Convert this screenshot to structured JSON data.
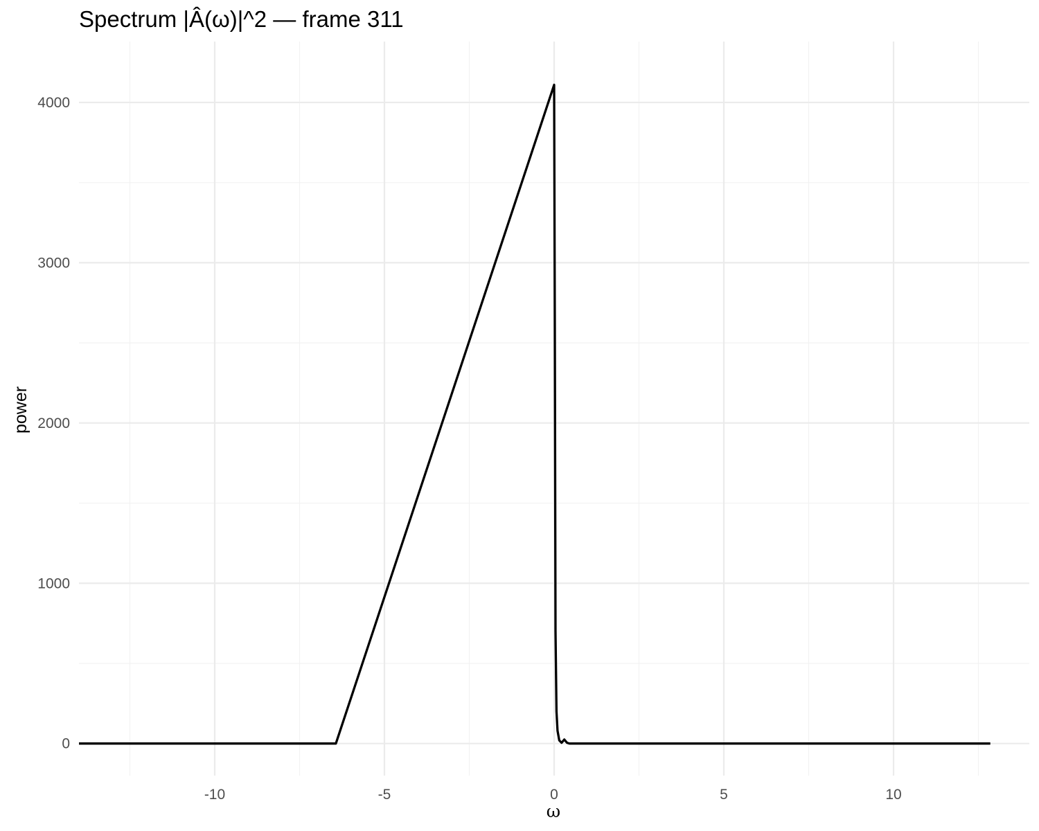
{
  "chart_data": {
    "type": "line",
    "title": "Spectrum |Â(ω)|^2 — frame 311",
    "xlabel": "ω",
    "ylabel": "power",
    "xlim": [
      -14.0,
      14.0
    ],
    "ylim": [
      -200,
      4380
    ],
    "x_ticks": [
      -10,
      -5,
      0,
      5,
      10
    ],
    "x_tick_labels": [
      "-10",
      "-5",
      "0",
      "5",
      "10"
    ],
    "x_minor_ticks": [
      -12.5,
      -7.5,
      -2.5,
      2.5,
      7.5,
      12.5
    ],
    "y_ticks": [
      0,
      1000,
      2000,
      3000,
      4000
    ],
    "y_tick_labels": [
      "0",
      "1000",
      "2000",
      "3000",
      "4000"
    ],
    "y_minor_ticks": [
      500,
      1500,
      2500,
      3500
    ],
    "grid": true,
    "legend": "none",
    "series": [
      {
        "color": "#000000",
        "x": [
          -14.0,
          -6.43,
          0.0,
          0.02,
          0.04,
          0.07,
          0.1,
          0.15,
          0.22,
          0.3,
          0.38,
          0.45,
          12.85
        ],
        "y": [
          0,
          0,
          4110,
          2600,
          700,
          200,
          80,
          20,
          5,
          25,
          5,
          0,
          0
        ]
      }
    ]
  }
}
